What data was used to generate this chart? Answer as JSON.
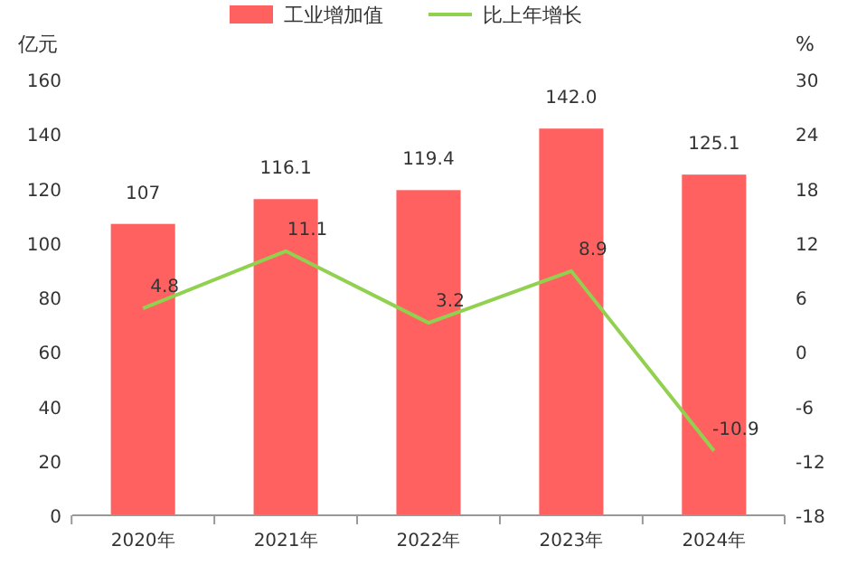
{
  "chart_data": {
    "type": "bar",
    "categories": [
      "2020年",
      "2021年",
      "2022年",
      "2023年",
      "2024年"
    ],
    "ylabel": "亿元",
    "y2label": "%",
    "ylim": [
      0,
      160
    ],
    "yticks": [
      0,
      20,
      40,
      60,
      80,
      100,
      120,
      140,
      160
    ],
    "y2lim": [
      -18,
      30
    ],
    "y2ticks": [
      -18,
      -12,
      -6,
      0,
      6,
      12,
      18,
      24,
      30
    ],
    "legend": "top",
    "grid": false,
    "marker": "none",
    "series": [
      {
        "name": "工业增加值",
        "color": "#ff6161",
        "values": [
          107,
          116.1,
          119.4,
          142.0,
          125.1
        ],
        "value_labels": [
          "107",
          "116.1",
          "119.4",
          "142.0",
          "125.1"
        ]
      },
      {
        "name": "比上年增长",
        "type": "line",
        "axis": "y2",
        "color": "#92d050",
        "values": [
          4.8,
          11.1,
          3.2,
          8.9,
          -10.9
        ],
        "value_labels": [
          "4.8",
          "11.1",
          "3.2",
          "8.9",
          "-10.9"
        ]
      }
    ]
  }
}
